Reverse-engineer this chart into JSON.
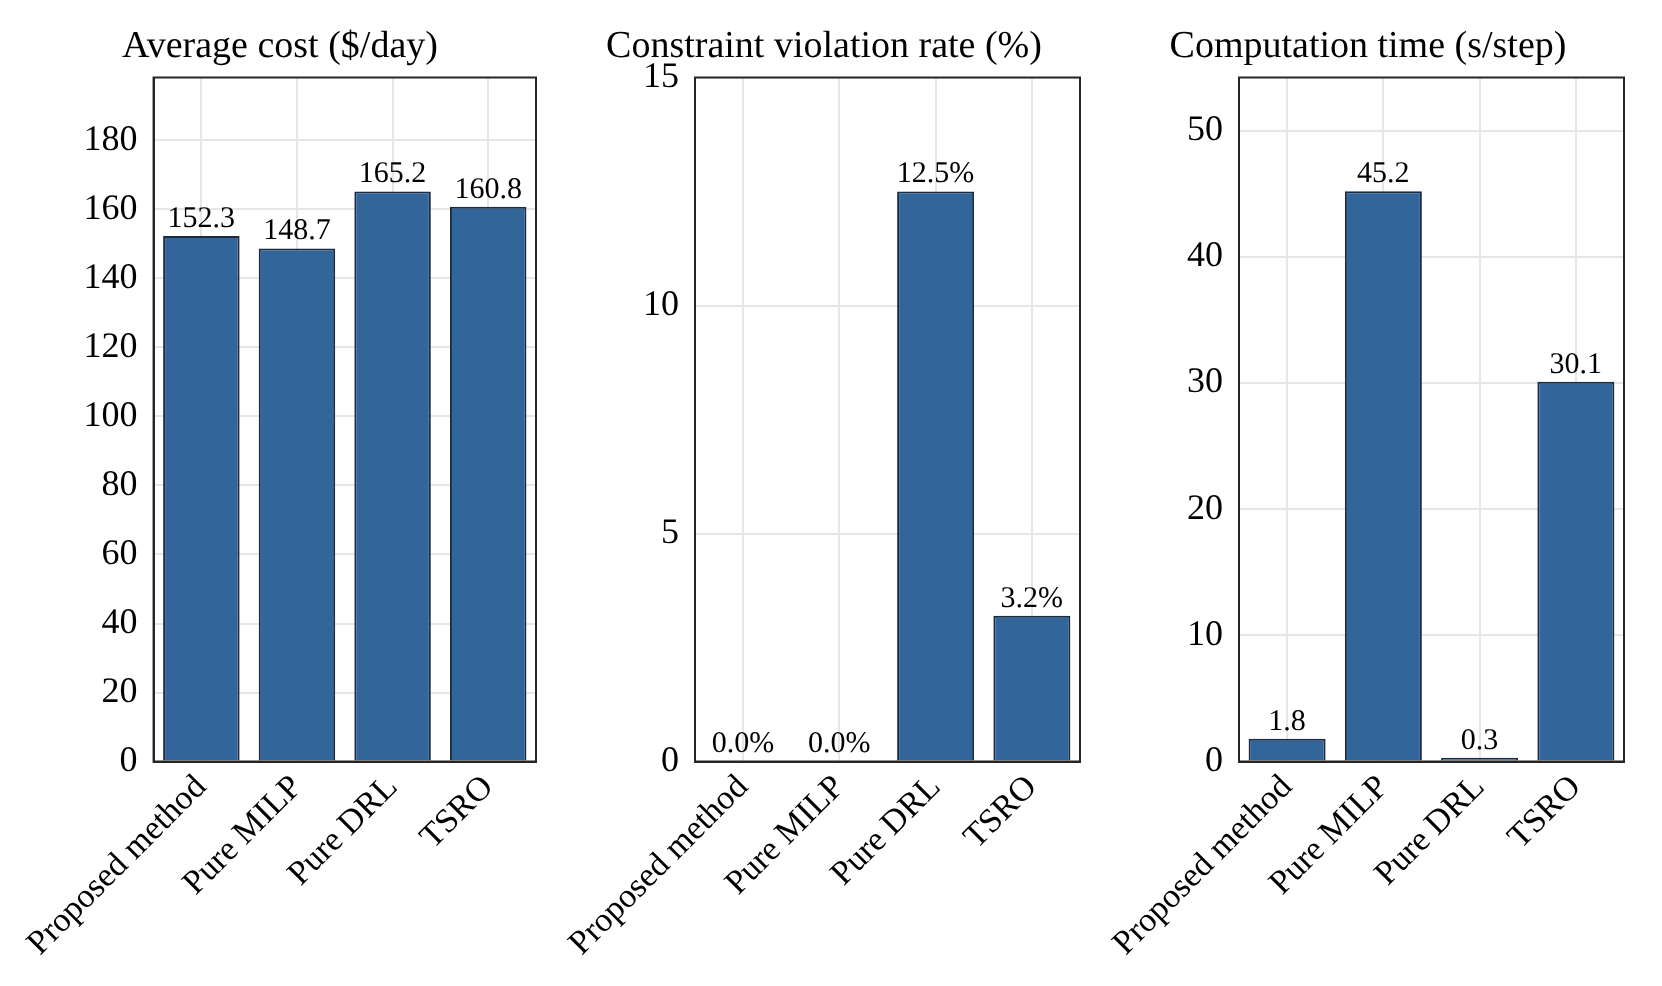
{
  "chart_data": [
    {
      "type": "bar",
      "title": "Average cost ($/day)",
      "categories": [
        "Proposed method",
        "Pure MILP",
        "Pure DRL",
        "TSRO"
      ],
      "values": [
        152.3,
        148.7,
        165.2,
        160.8
      ],
      "color": "#32659a",
      "ylim": [
        0,
        198.2
      ],
      "yticks": [
        0,
        20,
        40,
        60,
        80,
        100,
        120,
        140,
        160,
        180
      ],
      "grid": true,
      "data_labels": true
    },
    {
      "type": "bar",
      "title": "Constraint violation rate (%)",
      "categories": [
        "Proposed method",
        "Pure MILP",
        "Pure DRL",
        "TSRO"
      ],
      "values": [
        0,
        0,
        12.5,
        3.2
      ],
      "value_labels": [
        "0.0%",
        "0.0%",
        "12.5%",
        "3.2%"
      ],
      "color": "#32659a",
      "ylim": [
        0,
        15
      ],
      "yticks": [
        0,
        5,
        10,
        15
      ],
      "grid": true
    },
    {
      "type": "bar",
      "title": "Computation time (s/step)",
      "categories": [
        "Proposed method",
        "Pure MILP",
        "Pure DRL",
        "TSRO"
      ],
      "values": [
        1.8,
        45.2,
        0.3,
        30.1
      ],
      "color": "#32659a",
      "ylim": [
        0,
        54.2
      ],
      "yticks": [
        0,
        10,
        20,
        30,
        40,
        50
      ],
      "grid": true,
      "data_labels": true
    }
  ]
}
